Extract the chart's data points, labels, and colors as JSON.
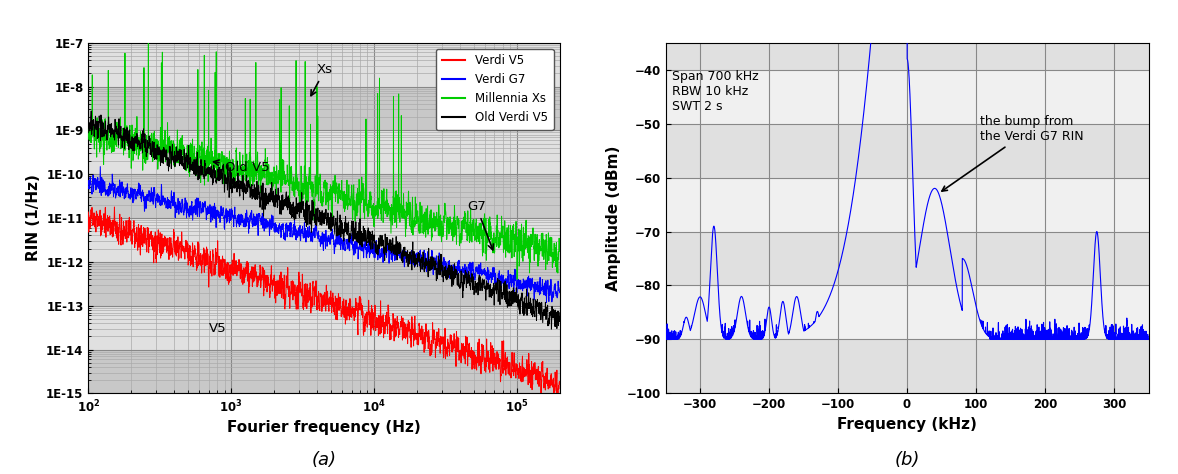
{
  "panel_a": {
    "xlabel": "Fourier frequency (Hz)",
    "ylabel": "RIN (1/Hz)",
    "xlim_log": [
      2,
      5.301
    ],
    "ylim_exp": [
      -15,
      -7
    ],
    "legend_labels": [
      "Verdi V5",
      "Verdi G7",
      "Millennia Xs",
      "Old Verdi V5"
    ],
    "legend_colors": [
      "#ff0000",
      "#0000ff",
      "#00cc00",
      "#000000"
    ],
    "grid_color": "#b0b0b0",
    "bg_color_dark": "#c8c8c8",
    "bg_color_light": "#e8e8e8"
  },
  "panel_b": {
    "xlabel": "Frequency (kHz)",
    "ylabel": "Amplitude (dBm)",
    "xlim": [
      -350,
      350
    ],
    "ylim": [
      -100,
      -35
    ],
    "yticks": [
      -100,
      -90,
      -80,
      -70,
      -60,
      -50,
      -40
    ],
    "xticks": [
      -300,
      -200,
      -100,
      0,
      100,
      200,
      300
    ],
    "line_color": "#0000ff",
    "grid_color": "#b0b0b0",
    "bg_color": "#ffffff"
  },
  "caption_a": "(a)",
  "caption_b": "(b)"
}
